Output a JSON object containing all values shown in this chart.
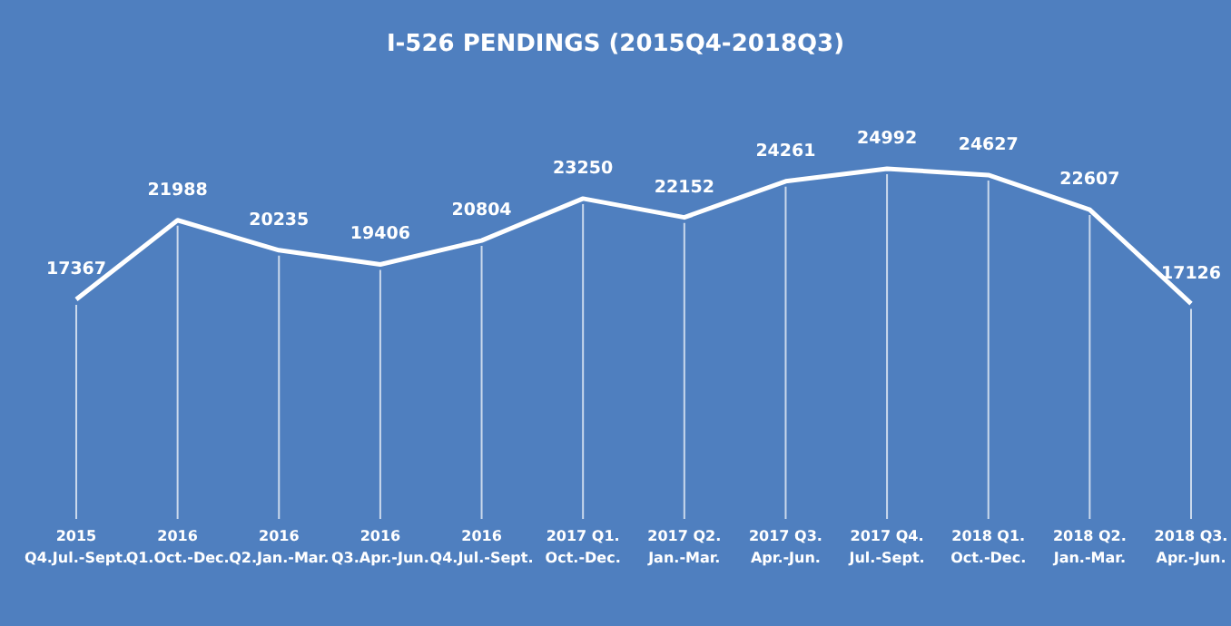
{
  "chart_data": {
    "type": "line",
    "title": "I-526 PENDINGS (2015Q4-2018Q3)",
    "categories": [
      "2015\nQ4.Jul.-Sept.",
      "2016\nQ1.Oct.-Dec.",
      "2016\nQ2.Jan.-Mar.",
      "2016\nQ3.Apr.-Jun.",
      "2016\nQ4.Jul.-Sept.",
      "2017 Q1.\nOct.-Dec.",
      "2017 Q2.\nJan.-Mar.",
      "2017 Q3.\nApr.-Jun.",
      "2017 Q4.\nJul.-Sept.",
      "2018 Q1.\nOct.-Dec.",
      "2018 Q2.\nJan.-Mar.",
      "2018 Q3.\nApr.-Jun."
    ],
    "series": [
      {
        "color": "#ffffff",
        "values": [
          17367,
          21988,
          20235,
          19406,
          20804,
          23250,
          22152,
          24261,
          24992,
          24627,
          22607,
          17126
        ]
      }
    ],
    "data_labels": true,
    "grid": "x",
    "line_style": "solid"
  }
}
